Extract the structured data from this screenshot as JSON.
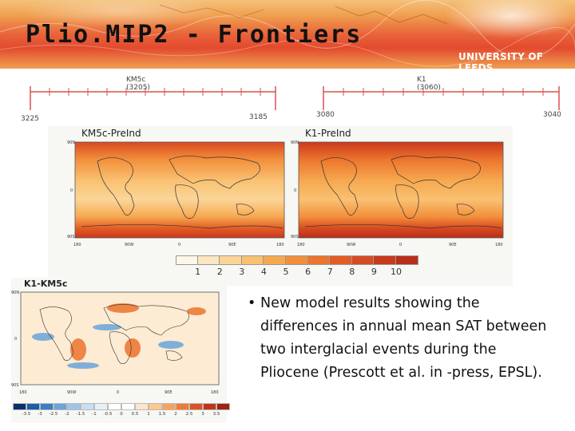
{
  "slide": {
    "title": "Plio.MIP2 - Frontiers",
    "logo_text": "UNIVERSITY OF LEEDS"
  },
  "timeline": {
    "left_label": "KM5c (3205)",
    "right_label": "K1 (3060)",
    "ticks": [
      "3225",
      "3185",
      "3080",
      "3040"
    ]
  },
  "maps": {
    "km5c": {
      "title": "KM5c-PreInd",
      "lat_labels": [
        "90N",
        "0",
        "90S"
      ],
      "lon_labels": [
        "180",
        "90W",
        "0",
        "90E",
        "180"
      ]
    },
    "k1": {
      "title": "K1-PreInd",
      "lat_labels": [
        "90N",
        "0",
        "90S"
      ],
      "lon_labels": [
        "180",
        "90W",
        "0",
        "90E",
        "180"
      ]
    },
    "diff": {
      "title": "K1-KM5c",
      "lat_labels": [
        "90N",
        "0",
        "90S"
      ],
      "lon_labels": [
        "180",
        "90W",
        "0",
        "90E",
        "180"
      ]
    }
  },
  "colorbar": {
    "labels": [
      "1",
      "2",
      "3",
      "4",
      "5",
      "6",
      "7",
      "8",
      "9",
      "10"
    ],
    "colors": [
      "#fdf6e9",
      "#fde7c2",
      "#fbd598",
      "#f9c171",
      "#f6a84f",
      "#f28f3b",
      "#ec742d",
      "#e35c25",
      "#d84a20",
      "#c9391c",
      "#b82e18"
    ]
  },
  "diff_colorbar": {
    "labels": [
      "-3.5",
      "-3",
      "-2.5",
      "-2",
      "-1.5",
      "-1",
      "-0.5",
      "0",
      "0.5",
      "1",
      "1.5",
      "2",
      "2.5",
      "3",
      "3.5"
    ],
    "colors": [
      "#08306b",
      "#1c5ca8",
      "#3a7fc4",
      "#6aa5d9",
      "#9cc5e8",
      "#c6def2",
      "#e6f0f9",
      "#ffffff",
      "#ffffff",
      "#fde6c8",
      "#fbc88d",
      "#f7a35a",
      "#ee7a37",
      "#dc5423",
      "#c0351a",
      "#9b2412"
    ]
  },
  "bullet": {
    "mark": "•",
    "text": "New model results showing the differences in annual mean SAT between two interglacial events during the Pliocene (Prescott et al. in -press, EPSL)."
  }
}
